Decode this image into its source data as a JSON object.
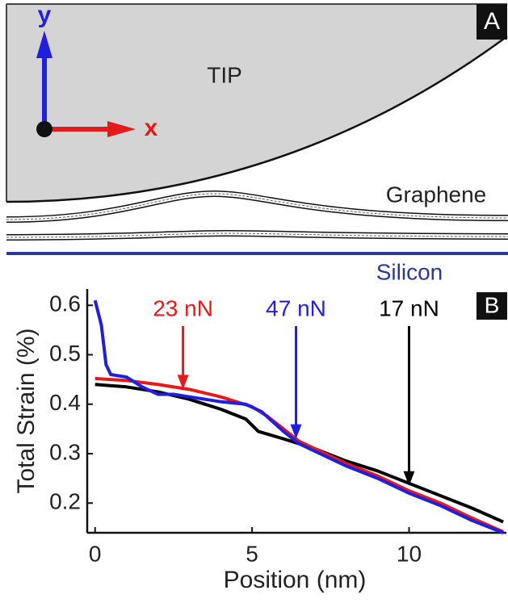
{
  "diagram": {
    "panel_label": "A",
    "tip_label": "TIP",
    "y_axis_label": "y",
    "x_axis_label": "x",
    "graphene_label": "Graphene",
    "silicon_label": "Silicon"
  },
  "chart_data": {
    "type": "line",
    "panel_label": "B",
    "x_label": "Position (nm)",
    "y_label": "Total Strain (%)",
    "xlim": [
      -0.25,
      13.1
    ],
    "ylim": [
      0.14,
      0.633
    ],
    "xticks": [
      0,
      5,
      10
    ],
    "yticks": [
      0.2,
      0.3,
      0.4,
      0.5,
      0.6
    ],
    "series": [
      {
        "name": "17 nN",
        "color": "#000000",
        "x": [
          0,
          1,
          2,
          3,
          4,
          4.8,
          5.2,
          6,
          7,
          8,
          9,
          10,
          11,
          12,
          13
        ],
        "values": [
          0.44,
          0.435,
          0.425,
          0.41,
          0.39,
          0.37,
          0.345,
          0.33,
          0.31,
          0.285,
          0.265,
          0.24,
          0.215,
          0.19,
          0.162
        ],
        "arrow": {
          "x": 10,
          "y": 0.235
        }
      },
      {
        "name": "23 nN",
        "color": "#e41a1c",
        "x": [
          0,
          1,
          2,
          3,
          4,
          5,
          5.5,
          6,
          6.5,
          7,
          8,
          9,
          10,
          11,
          12,
          13
        ],
        "values": [
          0.452,
          0.448,
          0.44,
          0.43,
          0.415,
          0.395,
          0.375,
          0.35,
          0.325,
          0.31,
          0.28,
          0.255,
          0.225,
          0.2,
          0.17,
          0.142
        ],
        "arrow": {
          "x": 2.8,
          "y": 0.43
        }
      },
      {
        "name": "47 nN",
        "color": "#1f1fdd",
        "x": [
          0,
          0.2,
          0.35,
          0.5,
          1,
          1.5,
          2,
          2.5,
          3,
          4,
          4.8,
          5.3,
          6,
          6.5,
          7,
          8,
          9,
          10,
          11,
          12,
          13
        ],
        "values": [
          0.61,
          0.56,
          0.48,
          0.46,
          0.455,
          0.435,
          0.42,
          0.42,
          0.415,
          0.405,
          0.4,
          0.385,
          0.345,
          0.32,
          0.305,
          0.275,
          0.25,
          0.22,
          0.195,
          0.165,
          0.14
        ],
        "arrow": {
          "x": 6.4,
          "y": 0.33
        }
      }
    ]
  }
}
